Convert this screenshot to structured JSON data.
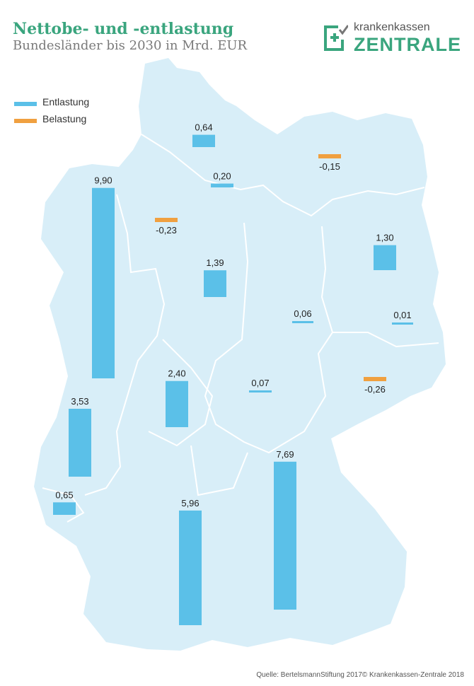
{
  "header": {
    "title": "Nettobe- und -entlastung",
    "subtitle": "Bundesländer bis 2030 in Mrd. EUR"
  },
  "logo": {
    "top": "krankenkassen",
    "bottom": "ZENTRALE",
    "icon": "shield-cross-check-icon",
    "color": "#3aa57e"
  },
  "legend": [
    {
      "label": "Entlastung",
      "color": "#5bc0e8"
    },
    {
      "label": "Belastung",
      "color": "#f0a040"
    }
  ],
  "source": "Quelle: BertelsmannStiftung 2017© Krankenkassen-Zentrale 2018",
  "chart_data": {
    "type": "bar",
    "title": "Nettobe- und -entlastung",
    "subtitle": "Bundesländer bis 2030 in Mrd. EUR",
    "unit": "Mrd. EUR",
    "colors": {
      "positive": "#5bc0e8",
      "negative": "#f0a040",
      "map": "#d8eef8"
    },
    "values": [
      {
        "value": 0.64,
        "label": "0,64"
      },
      {
        "value": -0.15,
        "label": "-0,15"
      },
      {
        "value": 0.2,
        "label": "0,20"
      },
      {
        "value": 9.9,
        "label": "9,90"
      },
      {
        "value": -0.23,
        "label": "-0,23"
      },
      {
        "value": 1.3,
        "label": "1,30"
      },
      {
        "value": 1.39,
        "label": "1,39"
      },
      {
        "value": 0.06,
        "label": "0,06"
      },
      {
        "value": 0.01,
        "label": "0,01"
      },
      {
        "value": 2.4,
        "label": "2,40"
      },
      {
        "value": 0.07,
        "label": "0,07"
      },
      {
        "value": -0.26,
        "label": "-0,26"
      },
      {
        "value": 3.53,
        "label": "3,53"
      },
      {
        "value": 7.69,
        "label": "7,69"
      },
      {
        "value": 0.65,
        "label": "0,65"
      },
      {
        "value": 5.96,
        "label": "5,96"
      }
    ]
  }
}
